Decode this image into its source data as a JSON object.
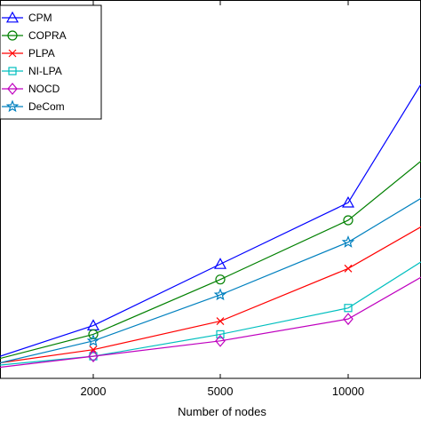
{
  "chart_data": {
    "type": "line",
    "title": "",
    "xlabel": "Number of nodes",
    "ylabel": "",
    "categories": [
      "",
      "2000",
      "5000",
      "10000",
      ""
    ],
    "ylim": [
      0,
      100
    ],
    "grid": false,
    "legend_position": "top-left",
    "series": [
      {
        "name": "CPM",
        "color": "#0000ff",
        "marker": "triangle-up",
        "values": [
          4,
          18,
          46,
          74,
          128
        ]
      },
      {
        "name": "COPRA",
        "color": "#008000",
        "marker": "circle",
        "values": [
          3,
          14,
          39,
          66,
          93
        ]
      },
      {
        "name": "PLPA",
        "color": "#ff0000",
        "marker": "x",
        "values": [
          1,
          7,
          20,
          44,
          63
        ]
      },
      {
        "name": "NI-LPA",
        "color": "#00bfbf",
        "marker": "square",
        "values": [
          0,
          4,
          14,
          26,
          47
        ]
      },
      {
        "name": "NOCD",
        "color": "#bf00bf",
        "marker": "diamond",
        "values": [
          -1,
          4,
          11,
          21,
          40
        ]
      },
      {
        "name": "DeCom",
        "color": "#0080bf",
        "marker": "star",
        "values": [
          1,
          11,
          32,
          56,
          76
        ]
      }
    ]
  }
}
